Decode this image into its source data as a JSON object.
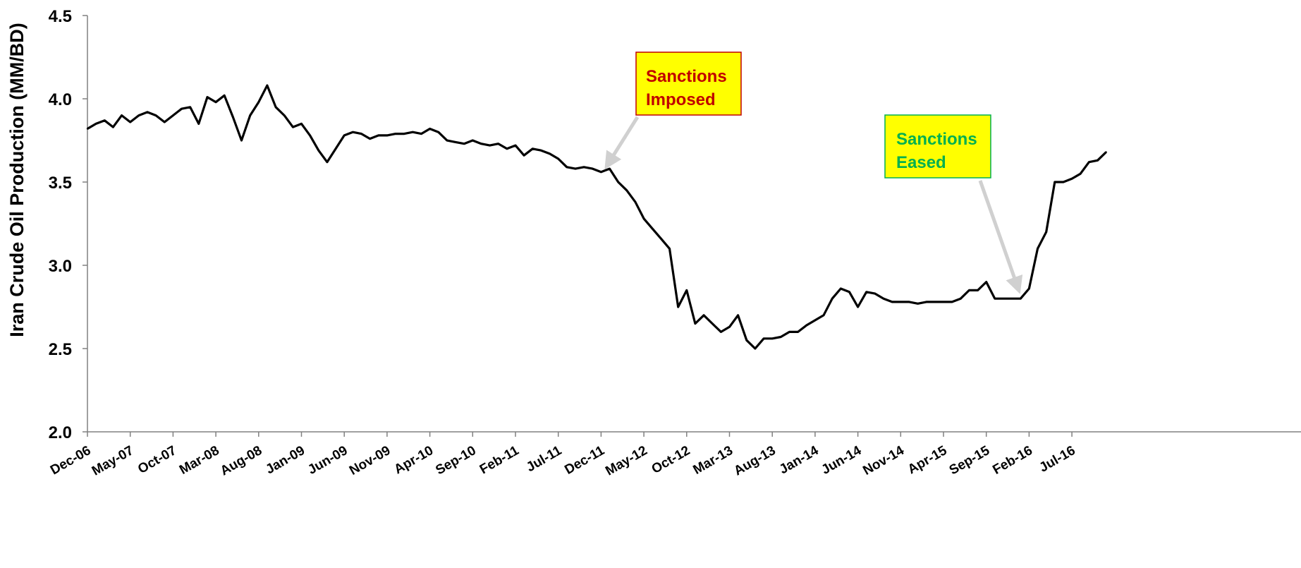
{
  "chart_data": {
    "type": "line",
    "title": "",
    "xlabel": "",
    "ylabel": "Iran Crude Oil Production (MM/BD)",
    "ylim": [
      2.0,
      4.5
    ],
    "yticks": [
      "2.0",
      "2.5",
      "3.0",
      "3.5",
      "4.0",
      "4.5"
    ],
    "grid": false,
    "legend": "none",
    "x_tick_labels": [
      "Dec-06",
      "May-07",
      "Oct-07",
      "Mar-08",
      "Aug-08",
      "Jan-09",
      "Jun-09",
      "Nov-09",
      "Apr-10",
      "Sep-10",
      "Feb-11",
      "Jul-11",
      "Dec-11",
      "May-12",
      "Oct-12",
      "Mar-13",
      "Aug-13",
      "Jan-14",
      "Jun-14",
      "Nov-14",
      "Apr-15",
      "Sep-15",
      "Feb-16",
      "Jul-16"
    ],
    "x_start": "Dec-06",
    "line_color": "#000000",
    "series": [
      {
        "values": [
          3.82,
          3.85,
          3.87,
          3.83,
          3.9,
          3.86,
          3.9,
          3.92,
          3.9,
          3.86,
          3.9,
          3.94,
          3.95,
          3.85,
          4.01,
          3.98,
          4.02,
          3.89,
          3.75,
          3.9,
          3.98,
          4.08,
          3.95,
          3.9,
          3.83,
          3.85,
          3.78,
          3.69,
          3.62,
          3.7,
          3.78,
          3.8,
          3.79,
          3.76,
          3.78,
          3.78,
          3.79,
          3.79,
          3.8,
          3.79,
          3.82,
          3.8,
          3.75,
          3.74,
          3.73,
          3.75,
          3.73,
          3.72,
          3.73,
          3.7,
          3.72,
          3.66,
          3.7,
          3.69,
          3.67,
          3.64,
          3.59,
          3.58,
          3.59,
          3.58,
          3.56,
          3.58,
          3.5,
          3.45,
          3.38,
          3.28,
          3.22,
          3.16,
          3.1,
          2.75,
          2.85,
          2.65,
          2.7,
          2.65,
          2.6,
          2.63,
          2.7,
          2.55,
          2.5,
          2.56,
          2.56,
          2.57,
          2.6,
          2.6,
          2.64,
          2.67,
          2.7,
          2.8,
          2.86,
          2.84,
          2.75,
          2.84,
          2.83,
          2.8,
          2.78,
          2.78,
          2.78,
          2.77,
          2.78,
          2.78,
          2.78,
          2.78,
          2.8,
          2.85,
          2.85,
          2.9,
          2.8,
          2.8,
          2.8,
          2.8,
          2.86,
          3.1,
          3.2,
          3.5,
          3.5,
          3.52,
          3.55,
          3.62,
          3.63,
          3.68
        ]
      }
    ],
    "annotations": [
      {
        "text_lines": [
          "Sanctions",
          "Imposed"
        ],
        "text_color": "#c00000",
        "box_fill": "#ffff00",
        "box_border": "#c00000",
        "points_to": "Dec-11"
      },
      {
        "text_lines": [
          "Sanctions",
          "Eased"
        ],
        "text_color": "#00b050",
        "box_fill": "#ffff00",
        "box_border": "#00b050",
        "points_to": "Jan-16"
      }
    ]
  }
}
